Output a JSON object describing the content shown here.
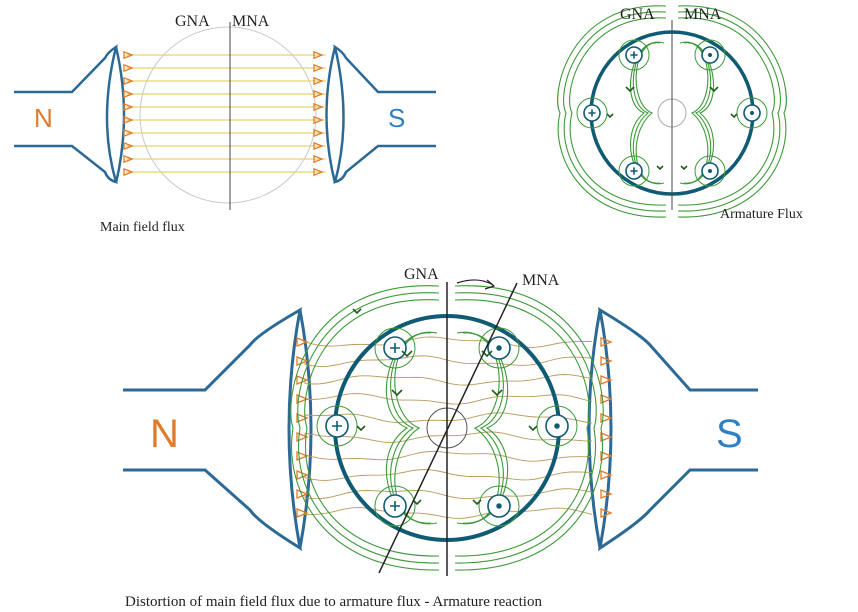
{
  "colors": {
    "pole": "#2c6a95",
    "rotor": "#0f5b73",
    "field_line": "#e8d36a",
    "field_arrow": "#e07b2a",
    "flux": "#3e9a3a",
    "flux_dark": "#1d5e1d",
    "axis": "#333333",
    "n_label": "#e07b2a",
    "s_label": "#2f7fc3"
  },
  "panels": {
    "main_field": {
      "gna": "GNA",
      "mna": "MNA",
      "north": "N",
      "south": "S",
      "caption": "Main field flux"
    },
    "armature": {
      "gna": "GNA",
      "mna": "MNA",
      "caption": "Armature Flux"
    },
    "combined": {
      "gna": "GNA",
      "mna": "MNA",
      "north": "N",
      "south": "S",
      "caption": "Distortion of main field flux due to armature flux - Armature reaction"
    }
  },
  "conductors": {
    "left_side": "cross-in",
    "right_side": "dot-out"
  }
}
